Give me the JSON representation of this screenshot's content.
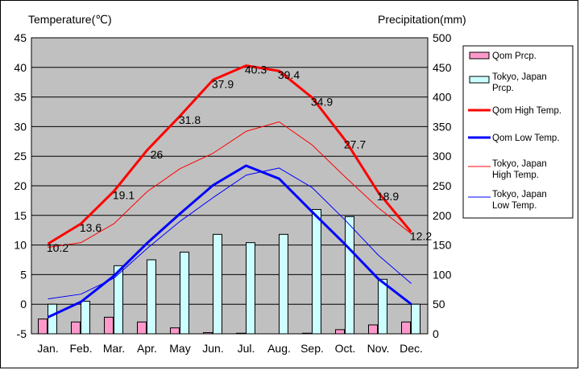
{
  "chart_data": {
    "type": "bar+line",
    "left_axis_title": "Temperature(℃)",
    "right_axis_title": "Precipitation(mm)",
    "categories": [
      "Jan.",
      "Feb.",
      "Mar.",
      "Apr.",
      "May",
      "Jun.",
      "Jul.",
      "Aug.",
      "Sep.",
      "Oct.",
      "Nov.",
      "Dec."
    ],
    "y_left": {
      "min": -5,
      "max": 45,
      "step": 5
    },
    "y_right": {
      "min": 0,
      "max": 500,
      "step": 50
    },
    "grid": true,
    "plot_background": "#c0c0c0",
    "legend_position": "right",
    "bar_series": [
      {
        "name": "Qom Prcp.",
        "label_lines": [
          "Qom Prcp."
        ],
        "color": "#ff99cc",
        "values": [
          25,
          20,
          28,
          20,
          10,
          2,
          1,
          0,
          1,
          7,
          15,
          20
        ]
      },
      {
        "name": "Tokyo, Japan Prcp.",
        "label_lines": [
          "Tokyo, Japan",
          "Prcp."
        ],
        "color": "#ccffff",
        "values": [
          50,
          55,
          115,
          125,
          138,
          168,
          154,
          168,
          210,
          198,
          92,
          50
        ]
      }
    ],
    "line_series": [
      {
        "name": "Qom High Temp.",
        "label_lines": [
          "Qom High Temp."
        ],
        "color": "#ff0000",
        "width": 3,
        "values": [
          10.2,
          13.6,
          19.1,
          26,
          31.8,
          37.9,
          40.3,
          39.4,
          34.9,
          27.7,
          18.9,
          12.2
        ],
        "data_labels": [
          "10.2",
          "13.6",
          "19.1",
          "26",
          "31.8",
          "37.9",
          "40.3",
          "39.4",
          "34.9",
          "27.7",
          "18.9",
          "12.2"
        ]
      },
      {
        "name": "Qom Low Temp.",
        "label_lines": [
          "Qom Low Temp."
        ],
        "color": "#0000ff",
        "width": 3,
        "values": [
          -2.2,
          0.4,
          4.8,
          10.3,
          15.3,
          20.1,
          23.4,
          21.2,
          15.6,
          10.1,
          4.3,
          0
        ]
      },
      {
        "name": "Tokyo, Japan High Temp.",
        "label_lines": [
          "Tokyo, Japan",
          "High Temp."
        ],
        "color": "#ff0000",
        "width": 1,
        "values": [
          9.6,
          10.4,
          13.6,
          19,
          22.9,
          25.5,
          29.2,
          30.8,
          26.9,
          21.5,
          16.3,
          11.9
        ]
      },
      {
        "name": "Tokyo, Japan Low Temp.",
        "label_lines": [
          "Tokyo, Japan",
          "Low Temp."
        ],
        "color": "#0000ff",
        "width": 1,
        "values": [
          0.9,
          1.7,
          4.4,
          9.4,
          14,
          18,
          21.8,
          23,
          19.7,
          14.2,
          8.3,
          3.5
        ]
      }
    ]
  }
}
